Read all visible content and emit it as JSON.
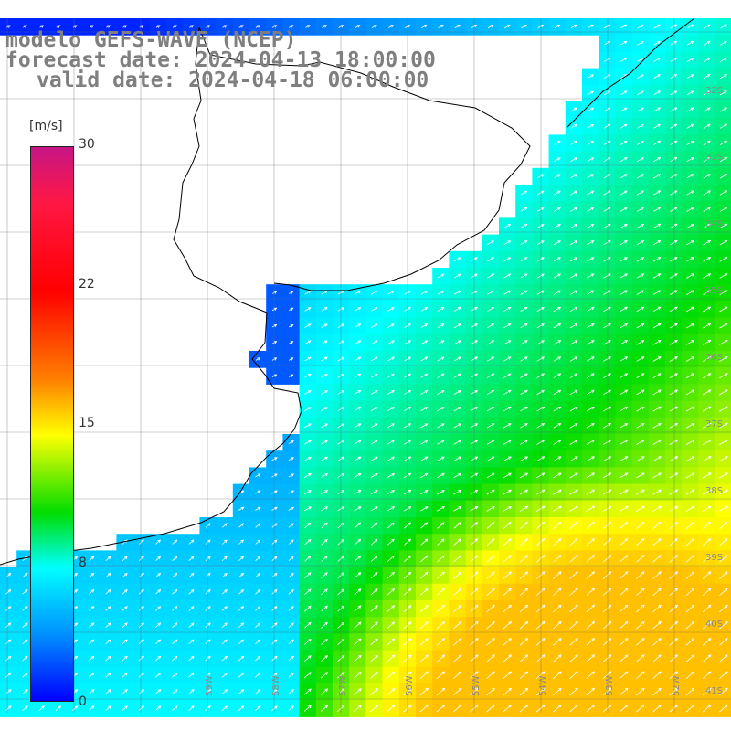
{
  "title": {
    "model": "modelo GEFS-WAVE (NCEP)",
    "forecast": "forecast date: 2024-04-13 18:00:00",
    "valid": "valid date: 2024-04-18 06:00:00"
  },
  "colorbar": {
    "units": "[m/s]",
    "ticks": [
      "30",
      "22",
      "15",
      "8",
      "0"
    ],
    "colors": [
      "#c71585",
      "#ff1744",
      "#ff0000",
      "#ff8000",
      "#ffff00",
      "#00dd00",
      "#00ffff",
      "#0090ff",
      "#0000ff"
    ],
    "range": [
      0,
      30
    ]
  },
  "map": {
    "lat_labels": [
      "32S",
      "33S",
      "34S",
      "35S",
      "36S",
      "37S",
      "38S",
      "39S",
      "40S",
      "41S"
    ],
    "lon_labels": [
      "59W",
      "58W",
      "57W",
      "56W",
      "55W",
      "54W",
      "53W",
      "52W",
      "51W"
    ],
    "field": "wind speed with direction arrows",
    "land_color": "#ffffff",
    "coast_color": "#000000"
  }
}
